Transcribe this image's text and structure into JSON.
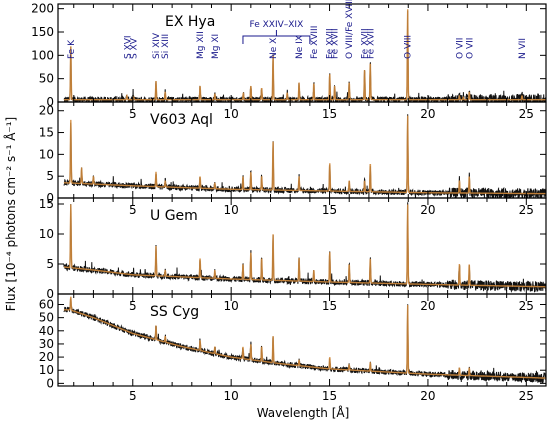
{
  "colors": {
    "data_line": "#111111",
    "model_line": "#d08a3c",
    "axis": "#000000",
    "label_blue": "#1a1a8c"
  },
  "chart_data": {
    "type": "line",
    "xlabel": "Wavelength [Å]",
    "ylabel": "Flux [10⁻⁴ photons cm⁻² s⁻¹ Å⁻¹]",
    "xlim": [
      1.2,
      26
    ],
    "x_ticks": [
      5,
      10,
      15,
      20,
      25
    ],
    "grid": false,
    "panels": [
      {
        "name": "EX Hya",
        "ylim": [
          0,
          210
        ],
        "y_ticks": [
          0,
          50,
          100,
          150,
          200
        ],
        "continuum": [
          {
            "x": 1.5,
            "y": 5
          },
          {
            "x": 26,
            "y": 5
          }
        ],
        "lines": [
          {
            "x": 1.85,
            "y": 120
          },
          {
            "x": 4.7,
            "y": 14
          },
          {
            "x": 5.05,
            "y": 10
          },
          {
            "x": 6.18,
            "y": 45
          },
          {
            "x": 6.65,
            "y": 22
          },
          {
            "x": 8.42,
            "y": 35
          },
          {
            "x": 9.17,
            "y": 18
          },
          {
            "x": 10.62,
            "y": 20
          },
          {
            "x": 11.0,
            "y": 35
          },
          {
            "x": 11.55,
            "y": 30
          },
          {
            "x": 12.13,
            "y": 100
          },
          {
            "x": 12.85,
            "y": 20
          },
          {
            "x": 13.45,
            "y": 42
          },
          {
            "x": 14.2,
            "y": 40
          },
          {
            "x": 15.01,
            "y": 60
          },
          {
            "x": 15.26,
            "y": 35
          },
          {
            "x": 16.0,
            "y": 42
          },
          {
            "x": 16.78,
            "y": 70
          },
          {
            "x": 17.07,
            "y": 85
          },
          {
            "x": 18.97,
            "y": 200
          },
          {
            "x": 21.6,
            "y": 12
          },
          {
            "x": 21.8,
            "y": 10
          },
          {
            "x": 22.1,
            "y": 22
          },
          {
            "x": 24.78,
            "y": 14
          }
        ],
        "annotations": [
          {
            "text": "Fe K",
            "x": 1.85
          },
          {
            "text": "S XVI",
            "x": 4.73
          },
          {
            "text": "S XV",
            "x": 5.04
          },
          {
            "text": "Si XIV",
            "x": 6.18
          },
          {
            "text": "Si XIII",
            "x": 6.65
          },
          {
            "text": "Mg XII",
            "x": 8.42
          },
          {
            "text": "Mg XI",
            "x": 9.17
          },
          {
            "text": "Ne X",
            "x": 12.13
          },
          {
            "text": "Ne IX",
            "x": 13.45
          },
          {
            "text": "Fe XVIII",
            "x": 14.2
          },
          {
            "text": "Fe XVII",
            "x": 15.01
          },
          {
            "text": "Fe XVII",
            "x": 15.26
          },
          {
            "text": "O VIII/Fe XVIII",
            "x": 16.0
          },
          {
            "text": "Fe XVII",
            "x": 16.78
          },
          {
            "text": "Fe XVII",
            "x": 17.07
          },
          {
            "text": "O VIII",
            "x": 18.97
          },
          {
            "text": "O VII",
            "x": 21.6
          },
          {
            "text": "O VII",
            "x": 22.1
          },
          {
            "text": "N VII",
            "x": 24.78
          }
        ],
        "bracket": {
          "text": "Fe XXIV–XIX",
          "x1": 10.6,
          "x2": 14.0
        }
      },
      {
        "name": "V603 Aql",
        "ylim": [
          0,
          22
        ],
        "y_ticks": [
          0,
          5,
          10,
          15,
          20
        ],
        "continuum": [
          {
            "x": 1.5,
            "y": 3.5
          },
          {
            "x": 5,
            "y": 2.8
          },
          {
            "x": 10,
            "y": 2.0
          },
          {
            "x": 15,
            "y": 1.6
          },
          {
            "x": 20,
            "y": 1.2
          },
          {
            "x": 26,
            "y": 1.0
          }
        ],
        "lines": [
          {
            "x": 1.85,
            "y": 18
          },
          {
            "x": 2.4,
            "y": 7
          },
          {
            "x": 3.0,
            "y": 5
          },
          {
            "x": 6.18,
            "y": 6
          },
          {
            "x": 6.65,
            "y": 4
          },
          {
            "x": 8.42,
            "y": 5
          },
          {
            "x": 9.17,
            "y": 3.5
          },
          {
            "x": 10.6,
            "y": 5
          },
          {
            "x": 11.0,
            "y": 6
          },
          {
            "x": 11.55,
            "y": 5
          },
          {
            "x": 12.13,
            "y": 13
          },
          {
            "x": 13.45,
            "y": 5
          },
          {
            "x": 15.01,
            "y": 8
          },
          {
            "x": 16.0,
            "y": 4
          },
          {
            "x": 16.78,
            "y": 4
          },
          {
            "x": 17.07,
            "y": 8
          },
          {
            "x": 18.97,
            "y": 19
          },
          {
            "x": 21.6,
            "y": 4
          },
          {
            "x": 22.1,
            "y": 5
          }
        ]
      },
      {
        "name": "U Gem",
        "ylim": [
          0,
          16
        ],
        "y_ticks": [
          0,
          5,
          10,
          15
        ],
        "continuum": [
          {
            "x": 1.5,
            "y": 4.5
          },
          {
            "x": 3,
            "y": 4.0
          },
          {
            "x": 5,
            "y": 3.2
          },
          {
            "x": 10,
            "y": 2.5
          },
          {
            "x": 15,
            "y": 2.0
          },
          {
            "x": 20,
            "y": 1.6
          },
          {
            "x": 26,
            "y": 1.2
          }
        ],
        "lines": [
          {
            "x": 1.85,
            "y": 15
          },
          {
            "x": 6.18,
            "y": 8
          },
          {
            "x": 6.65,
            "y": 4
          },
          {
            "x": 8.42,
            "y": 6
          },
          {
            "x": 9.17,
            "y": 4
          },
          {
            "x": 10.6,
            "y": 5
          },
          {
            "x": 11.0,
            "y": 7
          },
          {
            "x": 11.55,
            "y": 6
          },
          {
            "x": 12.13,
            "y": 10
          },
          {
            "x": 13.45,
            "y": 6
          },
          {
            "x": 14.2,
            "y": 4
          },
          {
            "x": 15.01,
            "y": 7
          },
          {
            "x": 16.0,
            "y": 5
          },
          {
            "x": 17.07,
            "y": 6
          },
          {
            "x": 18.97,
            "y": 15
          },
          {
            "x": 21.6,
            "y": 5
          },
          {
            "x": 22.1,
            "y": 5
          }
        ]
      },
      {
        "name": "SS Cyg",
        "ylim": [
          -2,
          68
        ],
        "y_ticks": [
          0,
          10,
          20,
          30,
          40,
          50,
          60
        ],
        "continuum": [
          {
            "x": 1.8,
            "y": 56
          },
          {
            "x": 3,
            "y": 50
          },
          {
            "x": 5,
            "y": 38
          },
          {
            "x": 7.5,
            "y": 28
          },
          {
            "x": 10,
            "y": 20
          },
          {
            "x": 12.5,
            "y": 15
          },
          {
            "x": 15,
            "y": 11
          },
          {
            "x": 20,
            "y": 7
          },
          {
            "x": 26,
            "y": 4
          }
        ],
        "lines": [
          {
            "x": 1.85,
            "y": 66
          },
          {
            "x": 6.18,
            "y": 44
          },
          {
            "x": 6.65,
            "y": 36
          },
          {
            "x": 8.42,
            "y": 33
          },
          {
            "x": 9.17,
            "y": 28
          },
          {
            "x": 10.6,
            "y": 28
          },
          {
            "x": 11.0,
            "y": 30
          },
          {
            "x": 11.55,
            "y": 28
          },
          {
            "x": 12.13,
            "y": 36
          },
          {
            "x": 13.45,
            "y": 18
          },
          {
            "x": 15.01,
            "y": 20
          },
          {
            "x": 16.0,
            "y": 14
          },
          {
            "x": 17.07,
            "y": 16
          },
          {
            "x": 18.97,
            "y": 60
          },
          {
            "x": 21.6,
            "y": 12
          },
          {
            "x": 22.1,
            "y": 12
          }
        ]
      }
    ]
  }
}
